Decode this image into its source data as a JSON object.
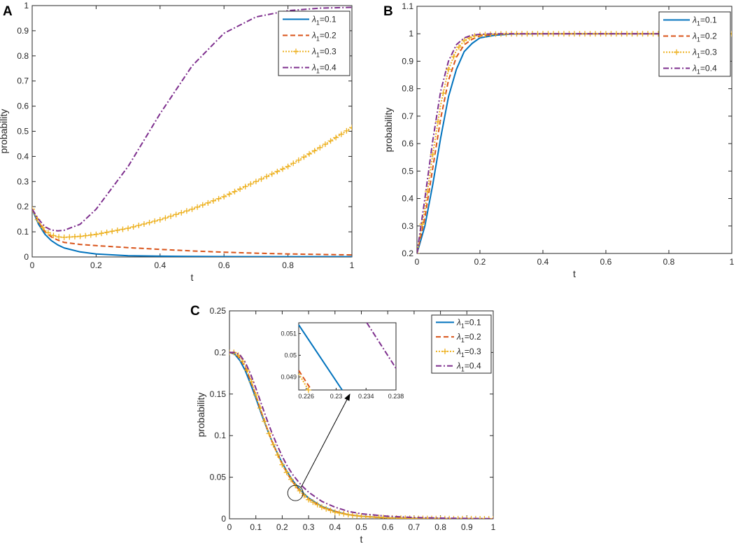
{
  "chart_data": [
    {
      "panel": "A",
      "type": "line",
      "xlabel": "t",
      "ylabel": "probability",
      "xlim": [
        0,
        1
      ],
      "ylim": [
        0,
        1
      ],
      "xticks": [
        "0",
        "0.2",
        "0.4",
        "0.6",
        "0.8",
        "1"
      ],
      "yticks": [
        "0",
        "0.1",
        "0.2",
        "0.3",
        "0.4",
        "0.5",
        "0.6",
        "0.7",
        "0.8",
        "0.9",
        "1"
      ],
      "legend_position": "top-right",
      "x": [
        0,
        0.02,
        0.04,
        0.06,
        0.08,
        0.1,
        0.15,
        0.2,
        0.3,
        0.4,
        0.5,
        0.6,
        0.7,
        0.8,
        0.9,
        1.0
      ],
      "series": [
        {
          "name": "λ1=0.1",
          "legend_main": "λ",
          "legend_sub": "1",
          "legend_rest": "=0.1",
          "color": "#0072bd",
          "style": "solid",
          "values": [
            0.19,
            0.13,
            0.09,
            0.065,
            0.048,
            0.036,
            0.02,
            0.012,
            0.005,
            0.003,
            0.002,
            0.0015,
            0.001,
            0.001,
            0.001,
            0.001
          ]
        },
        {
          "name": "λ1=0.2",
          "legend_main": "λ",
          "legend_sub": "1",
          "legend_rest": "=0.2",
          "color": "#d95319",
          "style": "dashed",
          "values": [
            0.19,
            0.14,
            0.1,
            0.08,
            0.067,
            0.058,
            0.05,
            0.045,
            0.037,
            0.03,
            0.024,
            0.019,
            0.015,
            0.012,
            0.01,
            0.008
          ]
        },
        {
          "name": "λ1=0.3",
          "legend_main": "λ",
          "legend_sub": "1",
          "legend_rest": "=0.3",
          "color": "#edb120",
          "style": "dotted-plus",
          "values": [
            0.19,
            0.14,
            0.105,
            0.088,
            0.08,
            0.078,
            0.082,
            0.09,
            0.114,
            0.148,
            0.19,
            0.24,
            0.3,
            0.36,
            0.435,
            0.515
          ]
        },
        {
          "name": "λ1=0.4",
          "legend_main": "λ",
          "legend_sub": "1",
          "legend_rest": "=0.4",
          "color": "#7e2f8e",
          "style": "dashdot",
          "values": [
            0.19,
            0.15,
            0.12,
            0.107,
            0.104,
            0.106,
            0.13,
            0.19,
            0.36,
            0.57,
            0.76,
            0.89,
            0.955,
            0.98,
            0.99,
            0.993
          ]
        }
      ]
    },
    {
      "panel": "B",
      "type": "line",
      "xlabel": "t",
      "ylabel": "probability",
      "xlim": [
        0,
        1
      ],
      "ylim": [
        0.2,
        1.1
      ],
      "xticks": [
        "0",
        "0.2",
        "0.4",
        "0.6",
        "0.8",
        "1"
      ],
      "yticks": [
        "0.2",
        "0.3",
        "0.4",
        "0.5",
        "0.6",
        "0.7",
        "0.8",
        "0.9",
        "1",
        "1.1"
      ],
      "legend_position": "top-right",
      "x": [
        0,
        0.025,
        0.05,
        0.075,
        0.1,
        0.125,
        0.15,
        0.175,
        0.2,
        0.25,
        0.3,
        0.4,
        0.6,
        0.8,
        1.0
      ],
      "series": [
        {
          "name": "λ1=0.1",
          "legend_main": "λ",
          "legend_sub": "1",
          "legend_rest": "=0.1",
          "color": "#0072bd",
          "style": "solid",
          "values": [
            0.2,
            0.3,
            0.45,
            0.62,
            0.77,
            0.87,
            0.935,
            0.965,
            0.985,
            0.995,
            0.999,
            1.0,
            1.0,
            1.0,
            1.0
          ]
        },
        {
          "name": "λ1=0.2",
          "legend_main": "λ",
          "legend_sub": "1",
          "legend_rest": "=0.2",
          "color": "#d95319",
          "style": "dashed",
          "values": [
            0.2,
            0.33,
            0.51,
            0.69,
            0.83,
            0.915,
            0.96,
            0.98,
            0.992,
            0.998,
            1.0,
            1.0,
            1.0,
            1.0,
            1.0
          ]
        },
        {
          "name": "λ1=0.3",
          "legend_main": "λ",
          "legend_sub": "1",
          "legend_rest": "=0.3",
          "color": "#edb120",
          "style": "dotted-plus",
          "values": [
            0.2,
            0.36,
            0.56,
            0.74,
            0.87,
            0.94,
            0.975,
            0.99,
            0.996,
            0.999,
            1.0,
            1.0,
            1.0,
            1.0,
            1.0
          ]
        },
        {
          "name": "λ1=0.4",
          "legend_main": "λ",
          "legend_sub": "1",
          "legend_rest": "=0.4",
          "color": "#7e2f8e",
          "style": "dashdot",
          "values": [
            0.2,
            0.4,
            0.61,
            0.79,
            0.9,
            0.96,
            0.985,
            0.995,
            0.998,
            1.0,
            1.0,
            1.0,
            1.0,
            1.0,
            1.0
          ]
        }
      ]
    },
    {
      "panel": "C",
      "type": "line",
      "xlabel": "t",
      "ylabel": "probability",
      "xlim": [
        0,
        1
      ],
      "ylim": [
        0,
        0.25
      ],
      "xticks": [
        "0",
        "0.1",
        "0.2",
        "0.3",
        "0.4",
        "0.5",
        "0.6",
        "0.7",
        "0.8",
        "0.9",
        "1"
      ],
      "yticks": [
        "0",
        "0.05",
        "0.1",
        "0.15",
        "0.2",
        "0.25"
      ],
      "legend_position": "top-right",
      "x": [
        0,
        0.02,
        0.04,
        0.06,
        0.08,
        0.1,
        0.12,
        0.14,
        0.16,
        0.18,
        0.2,
        0.22,
        0.24,
        0.26,
        0.28,
        0.3,
        0.35,
        0.4,
        0.45,
        0.5,
        0.6,
        0.7,
        0.8,
        0.9,
        1.0
      ],
      "series": [
        {
          "name": "λ1=0.1",
          "legend_main": "λ",
          "legend_sub": "1",
          "legend_rest": "=0.1",
          "color": "#0072bd",
          "style": "solid",
          "values": [
            0.2,
            0.198,
            0.19,
            0.178,
            0.162,
            0.145,
            0.127,
            0.11,
            0.094,
            0.08,
            0.067,
            0.056,
            0.046,
            0.038,
            0.031,
            0.025,
            0.015,
            0.009,
            0.005,
            0.003,
            0.001,
            0.0005,
            0.0002,
            0.0001,
            0.0
          ]
        },
        {
          "name": "λ1=0.2",
          "legend_main": "λ",
          "legend_sub": "1",
          "legend_rest": "=0.2",
          "color": "#d95319",
          "style": "dashed",
          "values": [
            0.2,
            0.199,
            0.193,
            0.182,
            0.166,
            0.148,
            0.129,
            0.111,
            0.094,
            0.079,
            0.066,
            0.054,
            0.044,
            0.036,
            0.029,
            0.024,
            0.014,
            0.009,
            0.005,
            0.003,
            0.001,
            0.0005,
            0.0002,
            0.0001,
            0.0
          ]
        },
        {
          "name": "λ1=0.3",
          "legend_main": "λ",
          "legend_sub": "1",
          "legend_rest": "=0.3",
          "color": "#edb120",
          "style": "dotted-plus",
          "values": [
            0.2,
            0.2,
            0.195,
            0.184,
            0.168,
            0.149,
            0.13,
            0.111,
            0.094,
            0.079,
            0.065,
            0.054,
            0.044,
            0.036,
            0.029,
            0.023,
            0.014,
            0.008,
            0.005,
            0.003,
            0.001,
            0.0005,
            0.0002,
            0.0001,
            0.0
          ]
        },
        {
          "name": "λ1=0.4",
          "legend_main": "λ",
          "legend_sub": "1",
          "legend_rest": "=0.4",
          "color": "#7e2f8e",
          "style": "dashdot",
          "values": [
            0.2,
            0.2,
            0.197,
            0.188,
            0.174,
            0.157,
            0.139,
            0.121,
            0.104,
            0.089,
            0.075,
            0.063,
            0.053,
            0.045,
            0.038,
            0.032,
            0.021,
            0.014,
            0.009,
            0.006,
            0.003,
            0.0015,
            0.0008,
            0.0004,
            0.0002
          ]
        }
      ],
      "inset": {
        "xlim": [
          0.225,
          0.238
        ],
        "ylim": [
          0.0484,
          0.0515
        ],
        "xticks": [
          "0.226",
          "0.23",
          "0.234",
          "0.238"
        ],
        "yticks": [
          "0.049",
          "0.05",
          "0.051"
        ],
        "lines": [
          {
            "series": "λ1=0.1",
            "x": [
              0.225,
              0.2308
            ],
            "values": [
              0.0514,
              0.0484
            ]
          },
          {
            "series": "λ1=0.2",
            "x": [
              0.225,
              0.2265
            ],
            "values": [
              0.0493,
              0.0485
            ]
          },
          {
            "series": "λ1=0.3",
            "x": [
              0.225,
              0.2263
            ],
            "values": [
              0.04915,
              0.0484
            ]
          },
          {
            "series": "λ1=0.4",
            "x": [
              0.2341,
              0.238
            ],
            "values": [
              0.0515,
              0.0494
            ]
          }
        ],
        "zoom_at": {
          "x": 0.25,
          "y": 0.031
        }
      }
    }
  ]
}
